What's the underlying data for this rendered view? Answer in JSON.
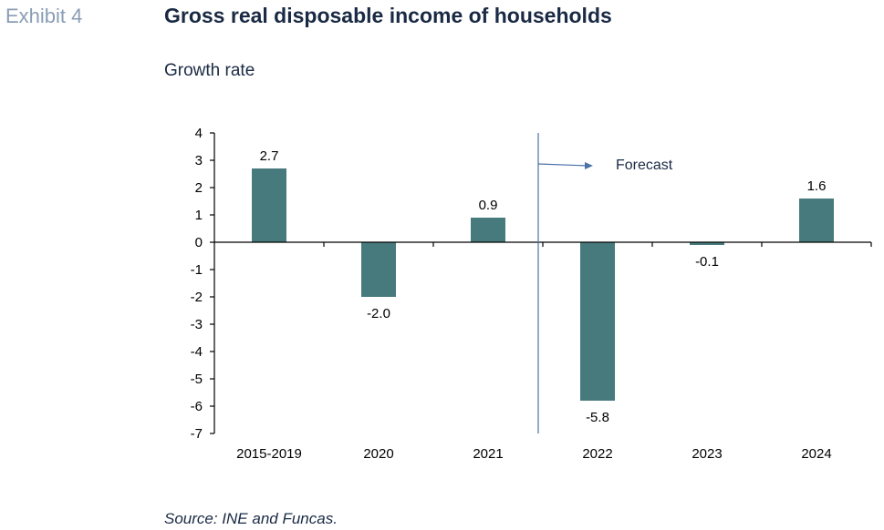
{
  "header": {
    "exhibit_label": "Exhibit 4",
    "title": "Gross real disposable income of households",
    "subtitle": "Growth rate"
  },
  "footer": {
    "source": "Source: INE and Funcas."
  },
  "colors": {
    "bar": "#477a7c",
    "axis": "#000000",
    "forecast_line": "#4a72a8",
    "text": "#1a2a44"
  },
  "chart_data": {
    "type": "bar",
    "title": "Gross real disposable income of households",
    "subtitle": "Growth rate",
    "xlabel": "",
    "ylabel": "",
    "categories": [
      "2015-2019",
      "2020",
      "2021",
      "2022",
      "2023",
      "2024"
    ],
    "values": [
      2.7,
      -2.0,
      0.9,
      -5.8,
      -0.1,
      1.6
    ],
    "data_labels": [
      "2.7",
      "-2.0",
      "0.9",
      "-5.8",
      "-0.1",
      "1.6"
    ],
    "ylim": [
      -7,
      4
    ],
    "yticks": [
      4,
      3,
      2,
      1,
      0,
      -1,
      -2,
      -3,
      -4,
      -5,
      -6,
      -7
    ],
    "grid": false,
    "legend": "none",
    "annotation": {
      "text": "Forecast",
      "divider_after_category": "2021"
    }
  }
}
